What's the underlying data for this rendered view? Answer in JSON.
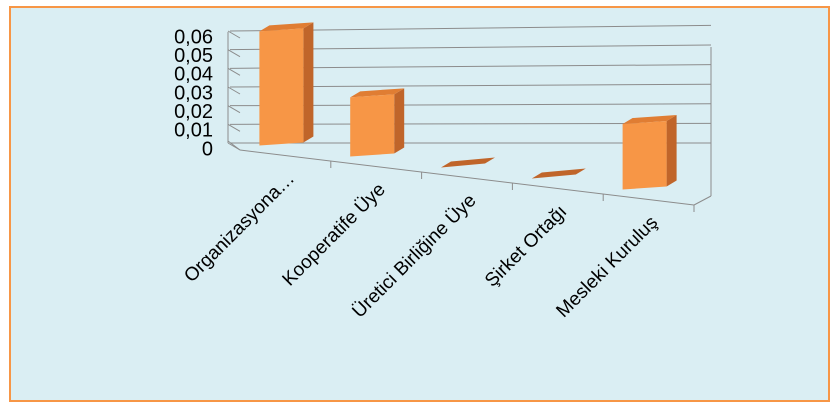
{
  "chart_data": {
    "type": "bar",
    "categories": [
      "Organizasyona…",
      "Kooperatife Üye",
      "Üretici Birliğine Üye",
      "Şirket Ortağı",
      "Mesleki Kuruluş"
    ],
    "values": [
      0.06,
      0.03,
      0.0,
      0.0,
      0.03
    ],
    "ylim": [
      0,
      0.06
    ],
    "yticks": [
      "0",
      "0,01",
      "0,02",
      "0,03",
      "0,04",
      "0,05",
      "0,06"
    ],
    "grid": true,
    "style": "3d-column",
    "colors": {
      "bar_front": "#f79646",
      "bar_side": "#c0652a",
      "bar_top": "#e07d33",
      "background": "#daeef3",
      "border": "#f79646",
      "grid": "#8c8c8c"
    }
  }
}
